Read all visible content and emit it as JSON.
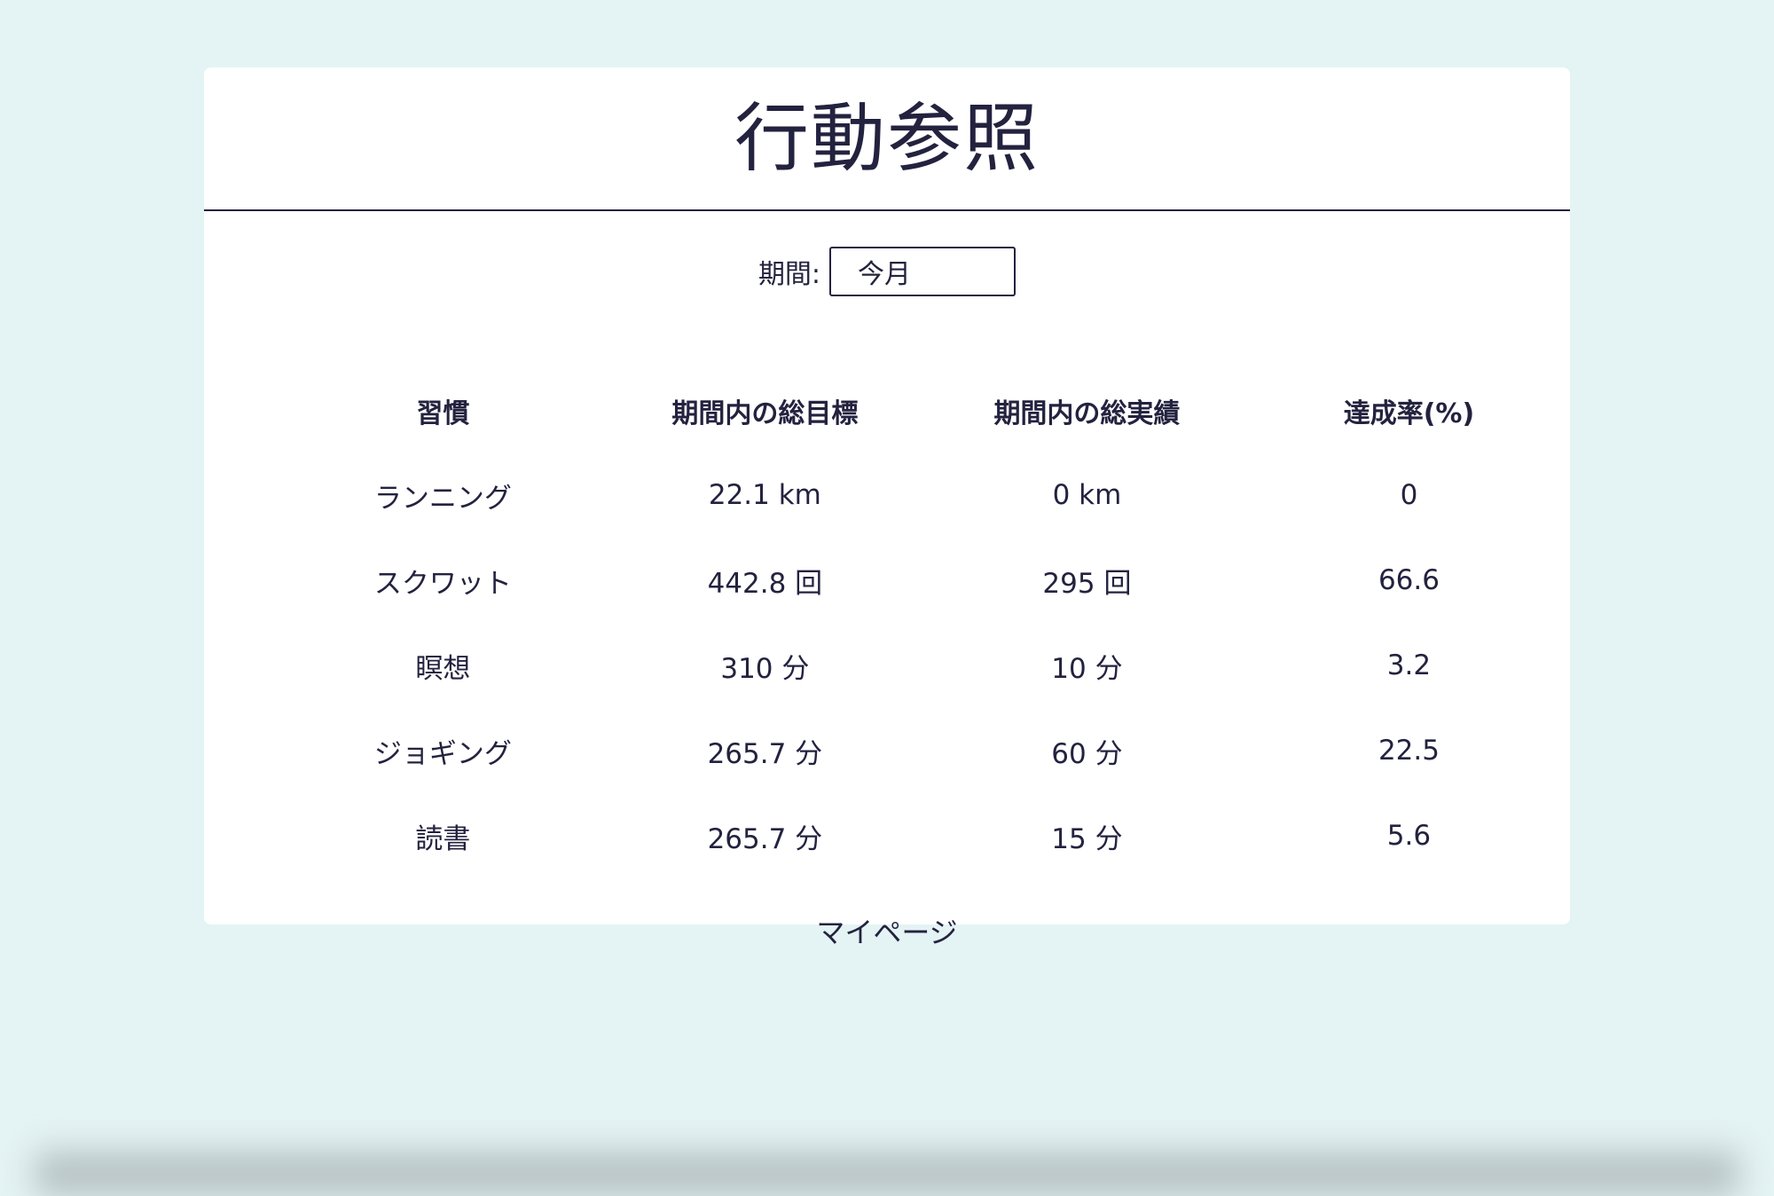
{
  "header": {
    "title": "行動参照"
  },
  "period": {
    "label": "期間:",
    "selected": "今月"
  },
  "table": {
    "columns": [
      "習慣",
      "期間内の総目標",
      "期間内の総実績",
      "達成率(%)"
    ],
    "rows": [
      [
        "ランニング",
        "22.1 km",
        "0 km",
        "0"
      ],
      [
        "スクワット",
        "442.8 回",
        "295 回",
        "66.6"
      ],
      [
        "瞑想",
        "310 分",
        "10 分",
        "3.2"
      ],
      [
        "ジョギング",
        "265.7 分",
        "60 分",
        "22.5"
      ],
      [
        "読書",
        "265.7 分",
        "15 分",
        "5.6"
      ]
    ]
  },
  "footer": {
    "mypage_label": "マイページ"
  }
}
